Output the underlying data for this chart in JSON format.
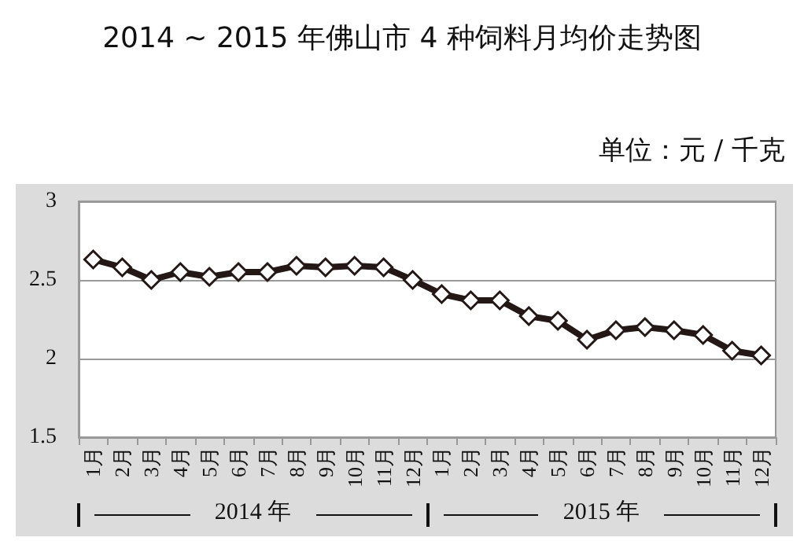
{
  "chart_data": {
    "type": "line",
    "title": "2014 ~ 2015 年佛山市 4 种饲料月均价走势图",
    "subtitle": "单位：元 / 千克",
    "categories": [
      "1月",
      "2月",
      "3月",
      "4月",
      "5月",
      "6月",
      "7月",
      "8月",
      "9月",
      "10月",
      "11月",
      "12月",
      "1月",
      "2月",
      "3月",
      "4月",
      "5月",
      "6月",
      "7月",
      "8月",
      "9月",
      "10月",
      "11月",
      "12月"
    ],
    "series": [
      {
        "color": "#231815",
        "values": [
          2.63,
          2.58,
          2.5,
          2.55,
          2.52,
          2.55,
          2.55,
          2.59,
          2.58,
          2.59,
          2.58,
          2.5,
          2.41,
          2.37,
          2.37,
          2.27,
          2.24,
          2.12,
          2.18,
          2.2,
          2.18,
          2.15,
          2.05,
          2.02
        ]
      }
    ],
    "annotations": [
      "2014 年",
      "2015 年"
    ],
    "ylim": [
      1.5,
      3
    ],
    "yticks": [
      1.5,
      2,
      2.5,
      3
    ],
    "grid": "y",
    "marker": "diamond",
    "line_style": "solid"
  }
}
